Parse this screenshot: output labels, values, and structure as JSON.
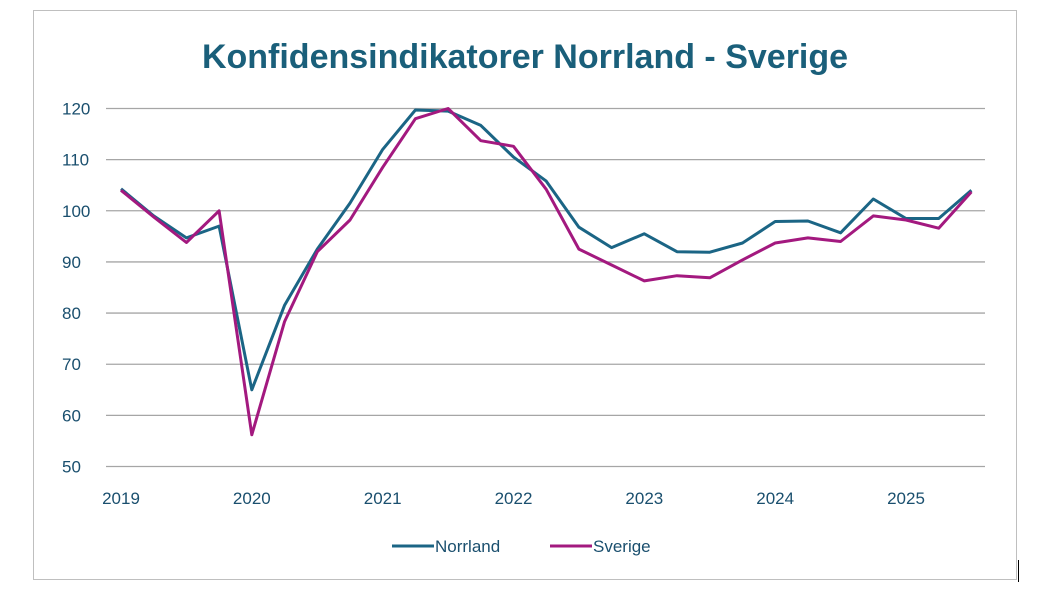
{
  "chart_data": {
    "type": "line",
    "title": "Konfidensindikatorer Norrland - Sverige",
    "xlabel": "",
    "ylabel": "",
    "ylim": [
      50,
      120
    ],
    "yticks": [
      "50",
      "60",
      "70",
      "80",
      "90",
      "100",
      "110",
      "120"
    ],
    "xticks": [
      "2019",
      "2020",
      "2021",
      "2022",
      "2023",
      "2024",
      "2025"
    ],
    "grid": true,
    "legend": "bottom",
    "x": [
      "2019Q1",
      "2019Q2",
      "2019Q3",
      "2019Q4",
      "2020Q1",
      "2020Q2",
      "2020Q3",
      "2020Q4",
      "2021Q1",
      "2021Q2",
      "2021Q3",
      "2021Q4",
      "2022Q1",
      "2022Q2",
      "2022Q3",
      "2022Q4",
      "2023Q1",
      "2023Q2",
      "2023Q3",
      "2023Q4",
      "2024Q1",
      "2024Q2",
      "2024Q3",
      "2024Q4",
      "2025Q1",
      "2025Q2",
      "2025Q3"
    ],
    "series": [
      {
        "name": "Norrland",
        "color": "#1b6585",
        "values": [
          104.3,
          99,
          94.7,
          97,
          65,
          81.5,
          92.5,
          101.5,
          112,
          119.7,
          119.5,
          116.7,
          110.5,
          105.8,
          96.8,
          92.8,
          95.5,
          92,
          91.9,
          93.7,
          97.9,
          98,
          95.7,
          102.3,
          98.5,
          98.5,
          104
        ]
      },
      {
        "name": "Sverige",
        "color": "#a3197f",
        "values": [
          104,
          98.8,
          93.8,
          100,
          56.2,
          78.3,
          92,
          98.2,
          108.5,
          118,
          120,
          113.7,
          112.6,
          104.2,
          92.5,
          89.4,
          86.3,
          87.3,
          86.9,
          90.4,
          93.7,
          94.7,
          94,
          99,
          98.2,
          96.6,
          103.7
        ]
      }
    ],
    "title_color": "#1a5f7a",
    "tick_color": "#1a4f6e"
  }
}
